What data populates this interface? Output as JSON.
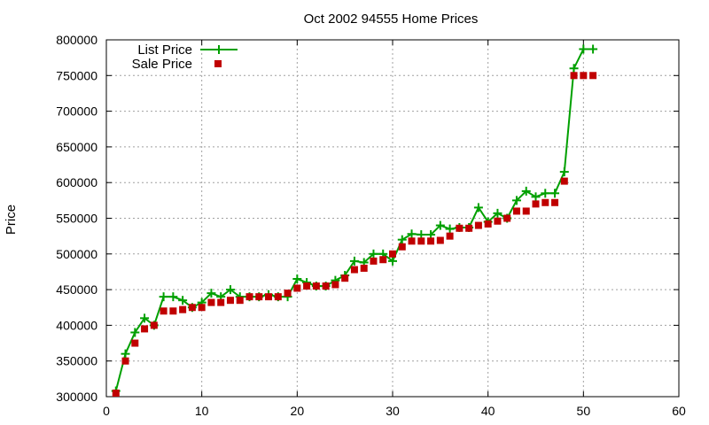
{
  "chart_data": {
    "type": "line",
    "title": "Oct 2002 94555 Home Prices",
    "xlabel": "",
    "ylabel": "Price",
    "xlim": [
      0,
      60
    ],
    "ylim": [
      300000,
      800000
    ],
    "xticks": [
      0,
      10,
      20,
      30,
      40,
      50,
      60
    ],
    "yticks": [
      300000,
      350000,
      400000,
      450000,
      500000,
      550000,
      600000,
      650000,
      700000,
      750000,
      800000
    ],
    "grid": true,
    "legend_position": "top-left",
    "series": [
      {
        "name": "List Price",
        "style": "line-plus",
        "color": "#00a000",
        "x": [
          1,
          2,
          3,
          4,
          5,
          6,
          7,
          8,
          9,
          10,
          11,
          12,
          13,
          14,
          15,
          16,
          17,
          18,
          19,
          20,
          21,
          22,
          23,
          24,
          25,
          26,
          27,
          28,
          29,
          30,
          31,
          32,
          33,
          34,
          35,
          36,
          37,
          38,
          39,
          40,
          41,
          42,
          43,
          44,
          45,
          46,
          47,
          48,
          49,
          50,
          51
        ],
        "y": [
          308000,
          360000,
          390000,
          410000,
          400000,
          440000,
          440000,
          435000,
          425000,
          432000,
          445000,
          440000,
          450000,
          440000,
          440000,
          440000,
          443000,
          440000,
          440000,
          465000,
          460000,
          455000,
          455000,
          463000,
          470000,
          490000,
          488000,
          500000,
          500000,
          490000,
          520000,
          528000,
          527000,
          527000,
          540000,
          535000,
          537000,
          537000,
          565000,
          545000,
          557000,
          550000,
          575000,
          588000,
          580000,
          585000,
          585000,
          615000,
          760000,
          787000,
          787000
        ]
      },
      {
        "name": "Sale Price",
        "style": "square",
        "color": "#c00000",
        "x": [
          1,
          2,
          3,
          4,
          5,
          6,
          7,
          8,
          9,
          10,
          11,
          12,
          13,
          14,
          15,
          16,
          17,
          18,
          19,
          20,
          21,
          22,
          23,
          24,
          25,
          26,
          27,
          28,
          29,
          30,
          31,
          32,
          33,
          34,
          35,
          36,
          37,
          38,
          39,
          40,
          41,
          42,
          43,
          44,
          45,
          46,
          47,
          48,
          49,
          50,
          51
        ],
        "y": [
          305000,
          350000,
          375000,
          395000,
          400000,
          420000,
          420000,
          422000,
          425000,
          425000,
          432000,
          432000,
          435000,
          435000,
          440000,
          440000,
          440000,
          440000,
          445000,
          452000,
          455000,
          455000,
          455000,
          457000,
          466000,
          478000,
          480000,
          490000,
          492000,
          500000,
          510000,
          518000,
          518000,
          518000,
          519000,
          525000,
          536000,
          536000,
          540000,
          542000,
          546000,
          550000,
          560000,
          560000,
          570000,
          572000,
          572000,
          602000,
          750000,
          750000,
          750000
        ]
      }
    ]
  }
}
